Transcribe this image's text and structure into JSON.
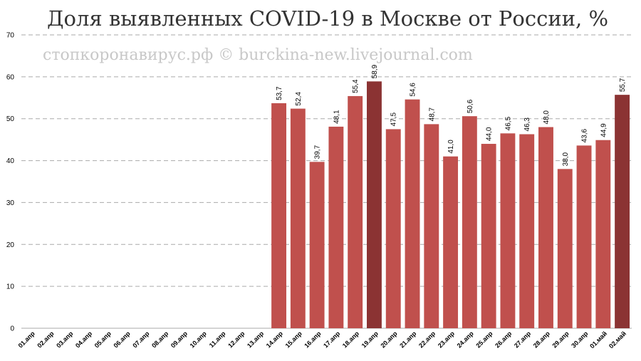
{
  "chart_data": {
    "type": "bar",
    "title": "Доля выявленных COVID-19 в Москве от России, %",
    "watermark": "стопкоронавирус.рф © burckina-new.livejournal.com",
    "categories": [
      "01.апр",
      "02.апр",
      "03.апр",
      "04.апр",
      "05.апр",
      "06.апр",
      "07.апр",
      "08.апр",
      "09.апр",
      "10.апр",
      "11.апр",
      "12.апр",
      "13.апр",
      "14.апр",
      "15.апр",
      "16.апр",
      "17.апр",
      "18.апр",
      "19.апр",
      "20.апр",
      "21.апр",
      "22.апр",
      "23.апр",
      "24.апр",
      "25.апр",
      "26.апр",
      "27.апр",
      "28.апр",
      "29.апр",
      "30.апр",
      "01.май",
      "02.май"
    ],
    "values": [
      null,
      null,
      null,
      null,
      null,
      null,
      null,
      null,
      null,
      null,
      null,
      null,
      null,
      53.7,
      52.4,
      39.7,
      48.1,
      55.4,
      58.9,
      47.5,
      54.6,
      48.7,
      41.0,
      50.6,
      44.0,
      46.5,
      46.3,
      48.0,
      38.0,
      43.6,
      44.9,
      55.7
    ],
    "value_labels": [
      null,
      null,
      null,
      null,
      null,
      null,
      null,
      null,
      null,
      null,
      null,
      null,
      null,
      "53,7",
      "52,4",
      "39,7",
      "48,1",
      "55,4",
      "58,9",
      "47,5",
      "54,6",
      "48,7",
      "41,0",
      "50,6",
      "44,0",
      "46,5",
      "46,3",
      "48,0",
      "38,0",
      "43,6",
      "44,9",
      "55,7"
    ],
    "colors": [
      "#c0504d",
      "#c0504d",
      "#c0504d",
      "#c0504d",
      "#c0504d",
      "#c0504d",
      "#c0504d",
      "#c0504d",
      "#c0504d",
      "#c0504d",
      "#c0504d",
      "#c0504d",
      "#c0504d",
      "#c0504d",
      "#c0504d",
      "#c0504d",
      "#c0504d",
      "#c0504d",
      "#8b3333",
      "#c0504d",
      "#c0504d",
      "#c0504d",
      "#c0504d",
      "#c0504d",
      "#c0504d",
      "#c0504d",
      "#c0504d",
      "#c0504d",
      "#c0504d",
      "#c0504d",
      "#c0504d",
      "#8b3333"
    ],
    "ylim": [
      0,
      70
    ],
    "yticks": [
      0,
      10,
      20,
      30,
      40,
      50,
      60,
      70
    ],
    "grid": true
  }
}
